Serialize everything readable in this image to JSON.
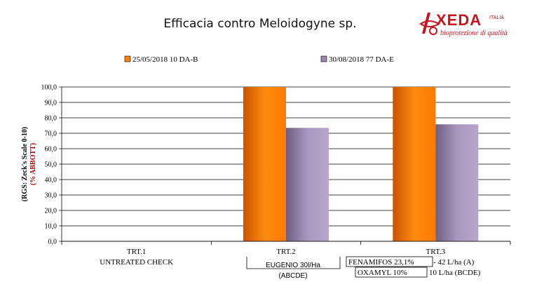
{
  "title": "Efficacia contro Meloidogyne sp.",
  "logo": {
    "name": "XEDA",
    "sub": "ITALIA",
    "tagline": "bioprotezione di qualità",
    "color": "#c8141e"
  },
  "chart_data": {
    "type": "bar",
    "categories": [
      "TRT.1",
      "TRT.2",
      "TRT.3"
    ],
    "category_sublabels": [
      "UNTREATED CHECK",
      "",
      ""
    ],
    "series": [
      {
        "name": "25/05/2018  10 DA-B",
        "values": [
          0,
          100,
          100
        ],
        "color": "#ff8000"
      },
      {
        "name": "30/08/2018   77 DA-E",
        "values": [
          0,
          73.5,
          75.8
        ],
        "color": "#9a88b0"
      }
    ],
    "ylabel_main": "(RGS: Zeck's Scale 0-10)",
    "ylabel_sub": "(% ABBOTT)",
    "ylim": [
      0,
      100
    ],
    "yticks": [
      "0,0",
      "10,0",
      "20,0",
      "30,0",
      "40,0",
      "50,0",
      "60,0",
      "70,0",
      "80,0",
      "90,0",
      "100,0"
    ],
    "legend_position": "top",
    "grid": true
  },
  "annotations": {
    "trt2_line1": "EUGENIO 30l/Ha",
    "trt2_line2": "(ABCDE)",
    "trt3_line1_box": "FENAMIFOS 23,1%",
    "trt3_line1_rest": "- 42 L/ha  (A)",
    "trt3_line2_box": "OXAMYL 10%",
    "trt3_line2_rest": "10 L/ha (BCDE)"
  }
}
